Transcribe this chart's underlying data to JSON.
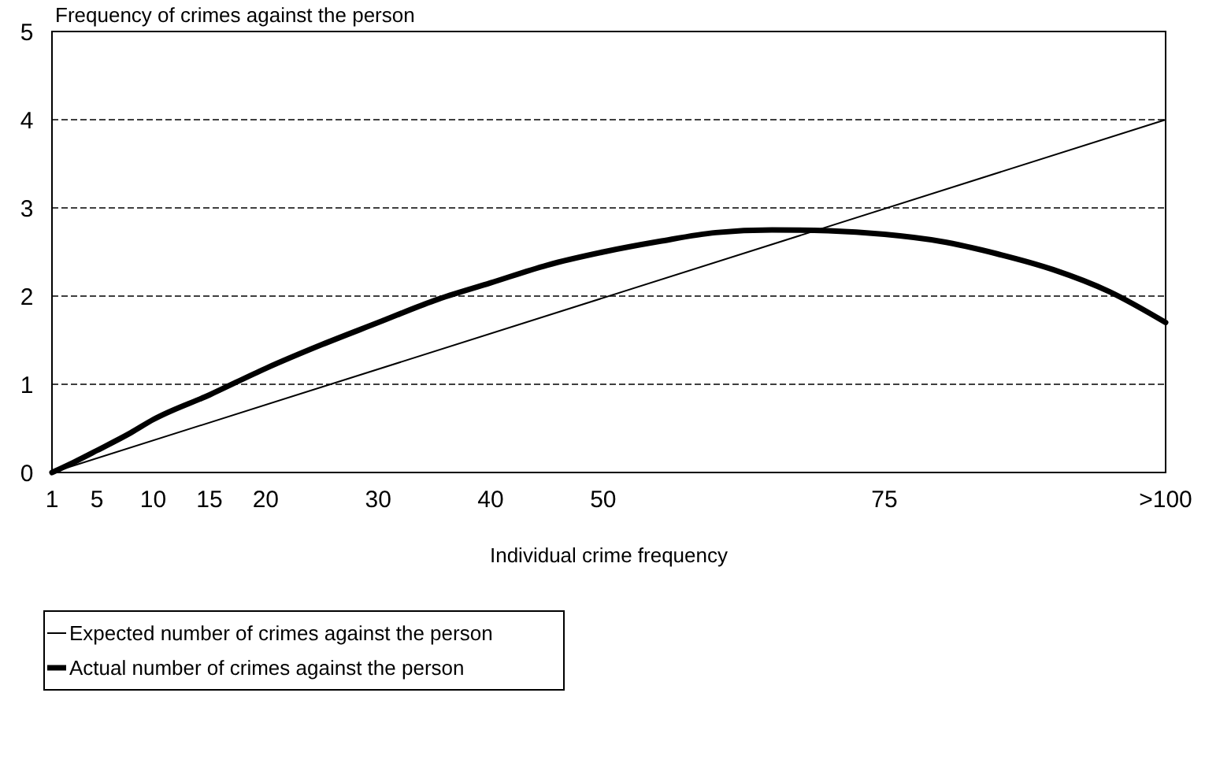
{
  "chart_data": {
    "type": "line",
    "ylabel": "Frequency of crimes against the person",
    "xlabel": "Individual crime frequency",
    "xlim": [
      1,
      100
    ],
    "xticks": [
      1,
      5,
      10,
      15,
      20,
      30,
      40,
      50,
      75,
      {
        "value": 100,
        "label": ">100"
      }
    ],
    "ylim": [
      0,
      5
    ],
    "yticks": [
      0,
      1,
      2,
      3,
      4,
      5
    ],
    "grid": "y",
    "legend": "bottom left",
    "marker": "none",
    "series": [
      {
        "name": "Expected number of crimes against the person",
        "color": "#000000",
        "x": [
          1,
          100
        ],
        "values": [
          0,
          4
        ]
      },
      {
        "name": "Actual number of crimes against the person",
        "color": "#000000",
        "x": [
          1,
          3,
          5,
          8,
          10,
          15,
          20,
          25,
          30,
          35,
          40,
          45,
          50,
          55,
          60,
          65,
          70,
          75,
          80,
          85,
          90,
          95,
          100
        ],
        "values": [
          0,
          0.12,
          0.25,
          0.45,
          0.6,
          0.88,
          1.18,
          1.45,
          1.7,
          1.95,
          2.15,
          2.35,
          2.5,
          2.62,
          2.72,
          2.75,
          2.74,
          2.7,
          2.62,
          2.48,
          2.3,
          2.05,
          1.7
        ]
      }
    ]
  }
}
